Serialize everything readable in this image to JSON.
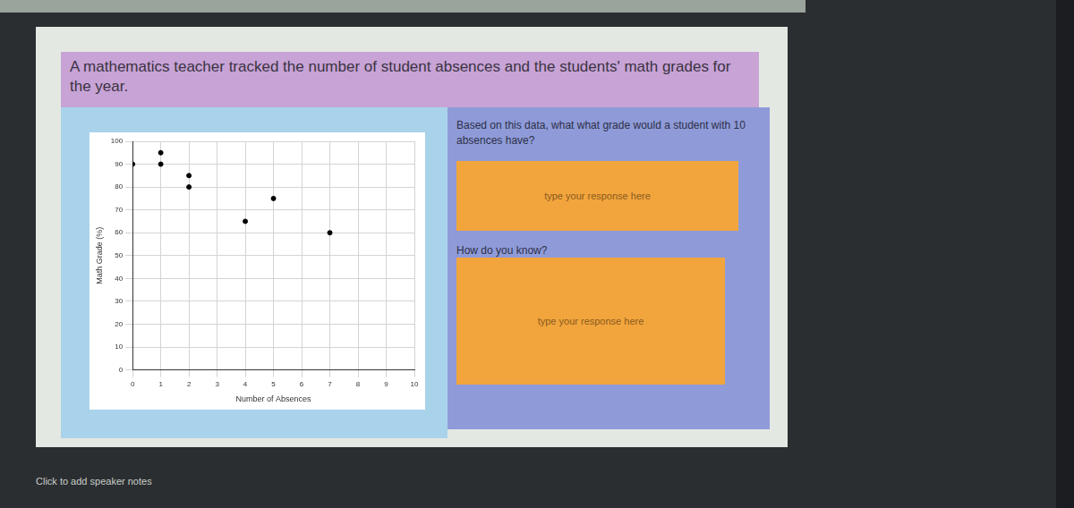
{
  "slide": {
    "title": "A mathematics teacher tracked the number of student absences and the students' math grades for the year.",
    "question_1": "Based on this data, what what grade would a student with 10 absences have?",
    "response_1": "type your response here",
    "question_2": "How do you know?",
    "response_2": "type your response here",
    "speaker_notes": "Click to add speaker notes"
  },
  "chart_data": {
    "type": "scatter",
    "x": [
      0,
      1,
      1,
      2,
      2,
      4,
      5,
      7
    ],
    "values": [
      90,
      95,
      90,
      85,
      80,
      65,
      75,
      60
    ],
    "x_label": "Number of Absences",
    "y_label": "Math Grade (%)",
    "xlim": [
      0,
      10
    ],
    "xticks": [
      0,
      1,
      2,
      3,
      4,
      5,
      6,
      7,
      8,
      9,
      10
    ],
    "ylim": [
      0,
      100
    ],
    "yticks": [
      0,
      10,
      20,
      30,
      40,
      50,
      60,
      70,
      80,
      90,
      100
    ],
    "grid": true,
    "color": "#000000",
    "marker": "circle"
  }
}
